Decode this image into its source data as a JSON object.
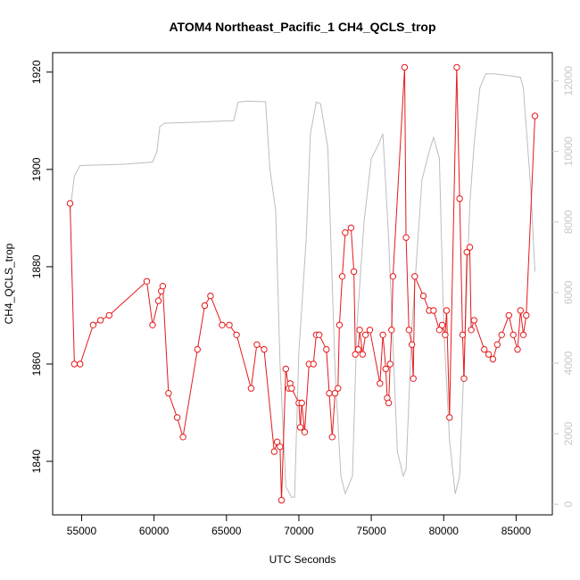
{
  "chart_data": {
    "type": "line",
    "title": "ATOM4 Northeast_Pacific_1 CH4_QCLS_trop",
    "xlabel": "UTC Seconds",
    "ylabel": "CH4_QCLS_trop",
    "xlim": [
      53000,
      87500
    ],
    "ylim": [
      1829,
      1924
    ],
    "y2lim": [
      -300,
      12800
    ],
    "x_ticks": [
      55000,
      60000,
      65000,
      70000,
      75000,
      80000,
      85000
    ],
    "y_ticks": [
      1840,
      1860,
      1880,
      1900,
      1920
    ],
    "y2_ticks": [
      0,
      2000,
      4000,
      6000,
      8000,
      10000,
      12000
    ],
    "colors": {
      "primary": "#e41a1c",
      "secondary": "#bdbdbd",
      "right_axis": "#c8c8c8"
    },
    "series": [
      {
        "axis": "left",
        "style": "line+points",
        "points": [
          [
            54200,
            1893
          ],
          [
            54500,
            1860
          ],
          [
            54900,
            1860
          ],
          [
            55800,
            1868
          ],
          [
            56300,
            1869
          ],
          [
            56900,
            1870
          ],
          [
            59500,
            1877
          ],
          [
            59900,
            1868
          ],
          [
            60300,
            1873
          ],
          [
            60500,
            1875
          ],
          [
            60600,
            1876
          ],
          [
            61000,
            1854
          ],
          [
            61600,
            1849
          ],
          [
            62000,
            1845
          ],
          [
            63000,
            1863
          ],
          [
            63500,
            1872
          ],
          [
            63900,
            1874
          ],
          [
            64700,
            1868
          ],
          [
            65200,
            1868
          ],
          [
            65700,
            1866
          ],
          [
            66700,
            1855
          ],
          [
            67100,
            1864
          ],
          [
            67600,
            1863
          ],
          [
            68300,
            1842
          ],
          [
            68500,
            1844
          ],
          [
            68700,
            1843
          ],
          [
            68800,
            1832
          ],
          [
            69100,
            1859
          ],
          [
            69300,
            1855
          ],
          [
            69400,
            1856
          ],
          [
            69500,
            1855
          ],
          [
            70000,
            1852
          ],
          [
            70100,
            1847
          ],
          [
            70200,
            1852
          ],
          [
            70400,
            1846
          ],
          [
            70700,
            1860
          ],
          [
            71000,
            1860
          ],
          [
            71200,
            1866
          ],
          [
            71400,
            1866
          ],
          [
            71900,
            1863
          ],
          [
            72100,
            1854
          ],
          [
            72300,
            1845
          ],
          [
            72500,
            1854
          ],
          [
            72700,
            1855
          ],
          [
            72800,
            1868
          ],
          [
            73000,
            1878
          ],
          [
            73200,
            1887
          ],
          [
            73600,
            1888
          ],
          [
            73800,
            1879
          ],
          [
            73900,
            1862
          ],
          [
            74100,
            1863
          ],
          [
            74200,
            1867
          ],
          [
            74400,
            1862
          ],
          [
            74600,
            1866
          ],
          [
            74900,
            1867
          ],
          [
            75600,
            1856
          ],
          [
            75800,
            1866
          ],
          [
            76000,
            1859
          ],
          [
            76100,
            1853
          ],
          [
            76200,
            1852
          ],
          [
            76300,
            1860
          ],
          [
            76400,
            1867
          ],
          [
            76500,
            1878
          ],
          [
            77300,
            1921
          ],
          [
            77400,
            1886
          ],
          [
            77600,
            1867
          ],
          [
            77800,
            1864
          ],
          [
            77900,
            1857
          ],
          [
            78000,
            1878
          ],
          [
            78600,
            1874
          ],
          [
            79000,
            1871
          ],
          [
            79300,
            1871
          ],
          [
            79700,
            1867
          ],
          [
            79900,
            1868
          ],
          [
            80100,
            1866
          ],
          [
            80200,
            1871
          ],
          [
            80400,
            1849
          ],
          [
            80900,
            1921
          ],
          [
            81100,
            1894
          ],
          [
            81300,
            1866
          ],
          [
            81400,
            1857
          ],
          [
            81600,
            1883
          ],
          [
            81800,
            1884
          ],
          [
            81900,
            1867
          ],
          [
            82100,
            1869
          ],
          [
            82800,
            1863
          ],
          [
            83100,
            1862
          ],
          [
            83400,
            1861
          ],
          [
            83700,
            1864
          ],
          [
            84000,
            1866
          ],
          [
            84500,
            1870
          ],
          [
            84800,
            1866
          ],
          [
            85100,
            1863
          ],
          [
            85300,
            1871
          ],
          [
            85500,
            1866
          ],
          [
            85700,
            1870
          ],
          [
            86300,
            1911
          ]
        ]
      },
      {
        "axis": "right",
        "style": "line",
        "points": [
          [
            54200,
            8300
          ],
          [
            54500,
            9300
          ],
          [
            54900,
            9600
          ],
          [
            56500,
            9620
          ],
          [
            58000,
            9640
          ],
          [
            59900,
            9700
          ],
          [
            60200,
            10000
          ],
          [
            60400,
            10700
          ],
          [
            60700,
            10800
          ],
          [
            63000,
            10830
          ],
          [
            64000,
            10850
          ],
          [
            65500,
            10870
          ],
          [
            65800,
            11400
          ],
          [
            66500,
            11430
          ],
          [
            67000,
            11420
          ],
          [
            67700,
            11410
          ],
          [
            68000,
            9500
          ],
          [
            68400,
            8300
          ],
          [
            68700,
            4000
          ],
          [
            69100,
            500
          ],
          [
            69500,
            200
          ],
          [
            69700,
            200
          ],
          [
            70000,
            4300
          ],
          [
            70500,
            7500
          ],
          [
            70800,
            10500
          ],
          [
            71200,
            11400
          ],
          [
            71500,
            11350
          ],
          [
            72000,
            10100
          ],
          [
            72500,
            3800
          ],
          [
            72900,
            800
          ],
          [
            73200,
            300
          ],
          [
            73700,
            800
          ],
          [
            74000,
            5000
          ],
          [
            74500,
            8000
          ],
          [
            75000,
            9800
          ],
          [
            75500,
            10200
          ],
          [
            75800,
            10500
          ],
          [
            76200,
            7500
          ],
          [
            76800,
            1500
          ],
          [
            77200,
            800
          ],
          [
            77400,
            1000
          ],
          [
            77800,
            5000
          ],
          [
            78500,
            9200
          ],
          [
            79000,
            10000
          ],
          [
            79300,
            10400
          ],
          [
            79700,
            9800
          ],
          [
            80000,
            5000
          ],
          [
            80400,
            1800
          ],
          [
            80800,
            300
          ],
          [
            81100,
            800
          ],
          [
            81500,
            5000
          ],
          [
            81800,
            8500
          ],
          [
            82100,
            10200
          ],
          [
            82500,
            11800
          ],
          [
            82900,
            12200
          ],
          [
            83500,
            12200
          ],
          [
            84500,
            12150
          ],
          [
            85300,
            12100
          ],
          [
            85500,
            11800
          ],
          [
            86000,
            9000
          ],
          [
            86300,
            6600
          ]
        ]
      }
    ]
  }
}
